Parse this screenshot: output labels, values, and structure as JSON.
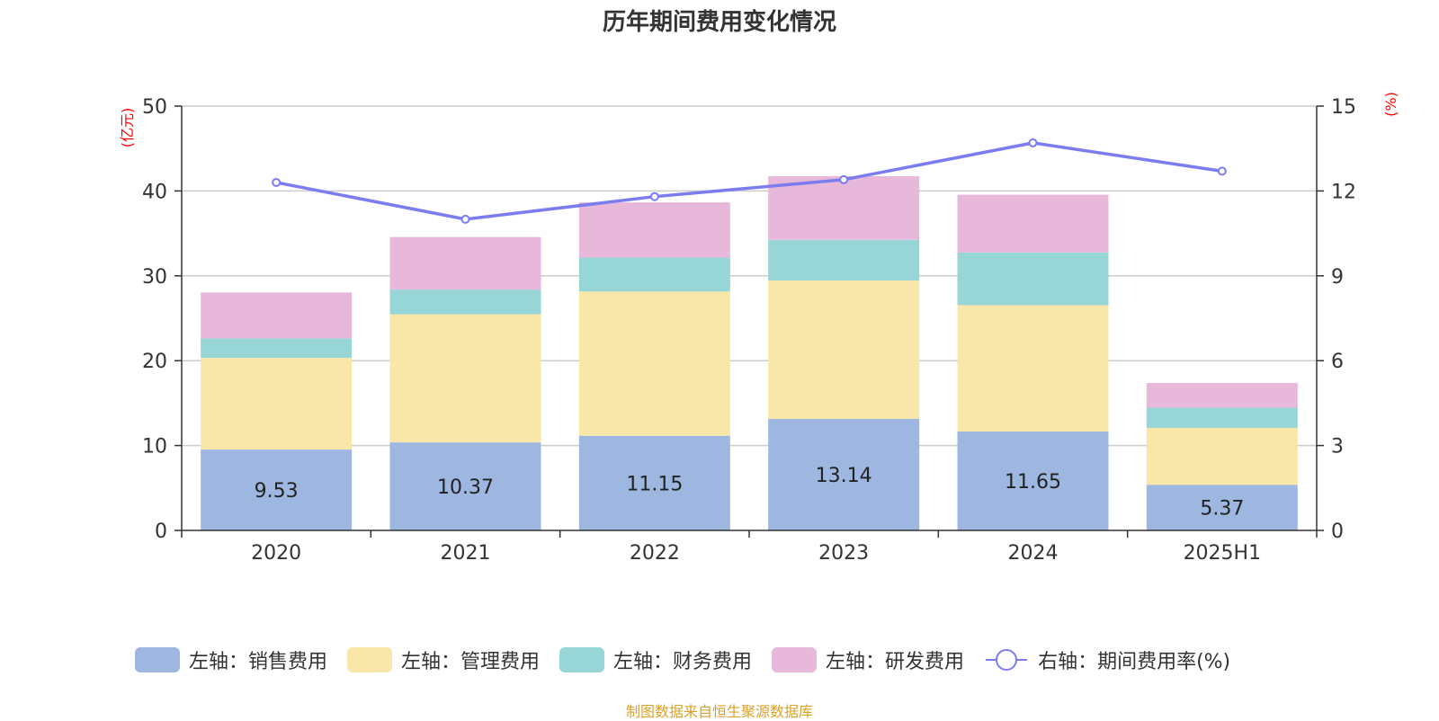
{
  "title": "历年期间费用变化情况",
  "source": "制图数据来自恒生聚源数据库",
  "colors": {
    "sales": "#9db7e1",
    "admin": "#f8e7a8",
    "finance": "#98d5d6",
    "rnd": "#e7b8d9",
    "line": "#7b7cf0",
    "axis_unit": "#ff0000",
    "source": "#d9a12c"
  },
  "legend": {
    "sales": "左轴：销售费用",
    "admin": "左轴：管理费用",
    "finance": "左轴：财务费用",
    "rnd": "左轴：研发费用",
    "rate": "右轴：期间费用率(%)"
  },
  "chart_data": {
    "type": "bar",
    "stacked": true,
    "categories": [
      "2020",
      "2021",
      "2022",
      "2023",
      "2024",
      "2025H1"
    ],
    "series": [
      {
        "name": "左轴：销售费用",
        "key": "sales",
        "axis": "left",
        "values": [
          9.53,
          10.37,
          11.15,
          13.14,
          11.65,
          5.37
        ]
      },
      {
        "name": "左轴：管理费用",
        "key": "admin",
        "axis": "left",
        "values": [
          10.8,
          15.1,
          17.0,
          16.3,
          14.9,
          6.7
        ]
      },
      {
        "name": "左轴：财务费用",
        "key": "finance",
        "axis": "left",
        "values": [
          2.3,
          2.9,
          4.0,
          4.8,
          6.2,
          2.4
        ]
      },
      {
        "name": "左轴：研发费用",
        "key": "rnd",
        "axis": "left",
        "values": [
          5.4,
          6.2,
          6.5,
          7.5,
          6.8,
          2.9
        ]
      },
      {
        "name": "右轴：期间费用率(%)",
        "key": "rate",
        "axis": "right",
        "type": "line",
        "values": [
          12.3,
          11.0,
          11.8,
          12.4,
          13.7,
          12.7
        ]
      }
    ],
    "data_labels": [
      "9.53",
      "10.37",
      "11.15",
      "13.14",
      "11.65",
      "5.37"
    ],
    "left_axis": {
      "unit": "(亿元)",
      "min": 0,
      "max": 50,
      "ticks": [
        0,
        10,
        20,
        30,
        40,
        50
      ]
    },
    "right_axis": {
      "unit": "(%)",
      "min": 0,
      "max": 15,
      "ticks": [
        0,
        3,
        6,
        9,
        12,
        15
      ]
    },
    "grid": true,
    "legend_position": "bottom"
  }
}
